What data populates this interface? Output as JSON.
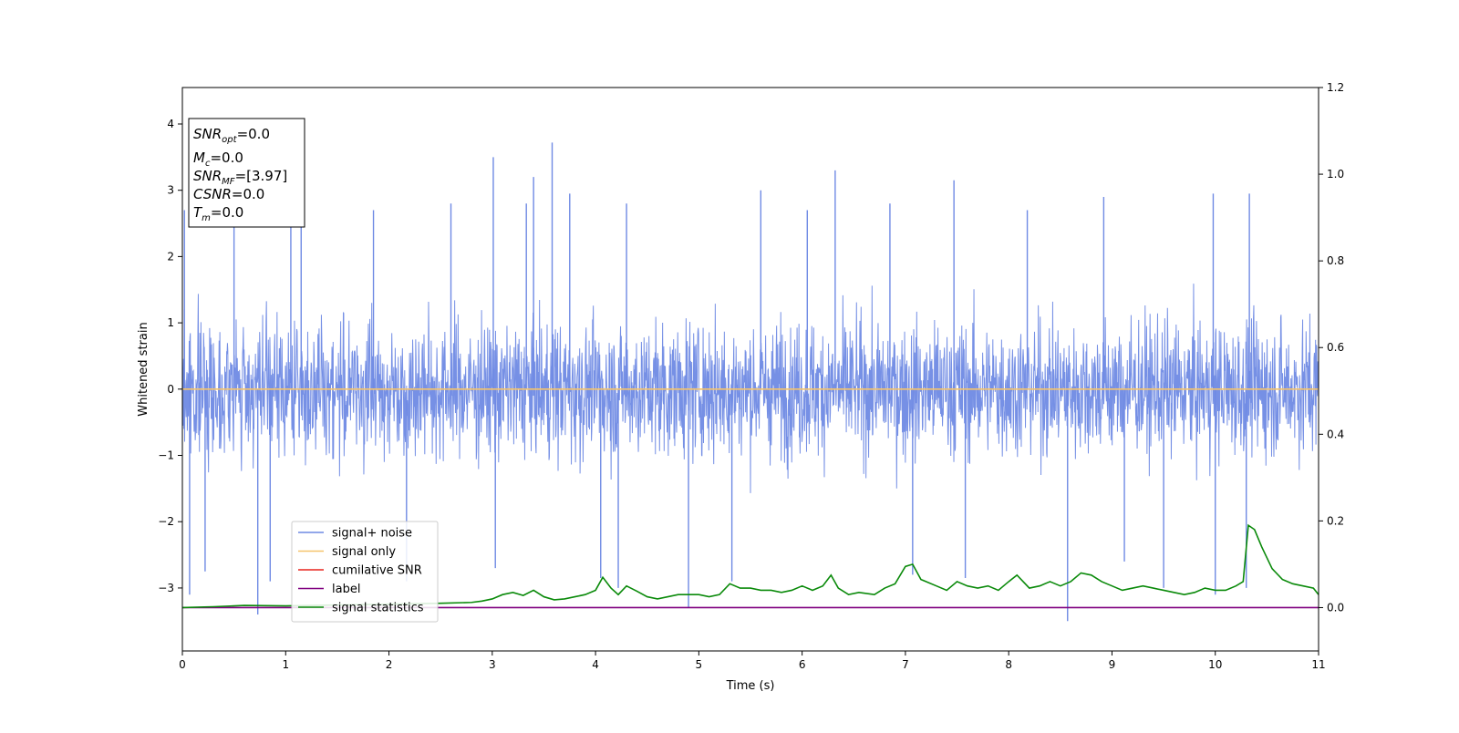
{
  "chart_data": {
    "type": "line",
    "xlabel": "Time (s)",
    "ylabel": "Whitened strain",
    "xlim": [
      0,
      11
    ],
    "ylim_left": [
      -3.95,
      4.55
    ],
    "ylim_right": [
      -0.1,
      1.2
    ],
    "x_ticks": [
      0,
      1,
      2,
      3,
      4,
      5,
      6,
      7,
      8,
      9,
      10,
      11
    ],
    "y_left_ticks": [
      -3,
      -2,
      -1,
      0,
      1,
      2,
      3,
      4
    ],
    "y_right_ticks": [
      0.0,
      0.2,
      0.4,
      0.6,
      0.8,
      1.0,
      1.2
    ],
    "grid": false,
    "legend_position": "lower-left",
    "info_box": {
      "snr_opt": {
        "base": "SNR",
        "sub": "opt",
        "value": "=0.0"
      },
      "mc": {
        "base": "M",
        "sub": "c",
        "value": "=0.0"
      },
      "snr_mf": {
        "base": "SNR",
        "sub": "MF",
        "value": "=[3.97]"
      },
      "csnr": {
        "base": "CSNR",
        "value": "=0.0"
      },
      "tm": {
        "base": "T",
        "sub": "m",
        "value": "=0.0"
      }
    },
    "series": [
      {
        "name": "signal+ noise",
        "axis": "left",
        "color": "#6f8ae4",
        "description": "dense whitened noise, roughly within -1.8 to 2.2 with spikes",
        "spikes": [
          [
            0.02,
            2.7
          ],
          [
            0.07,
            -3.1
          ],
          [
            0.22,
            -2.75
          ],
          [
            0.5,
            2.8
          ],
          [
            0.73,
            -3.4
          ],
          [
            0.85,
            -2.9
          ],
          [
            1.05,
            2.9
          ],
          [
            1.15,
            2.75
          ],
          [
            1.85,
            2.7
          ],
          [
            2.17,
            -2.9
          ],
          [
            2.6,
            2.8
          ],
          [
            3.01,
            3.5
          ],
          [
            3.03,
            -2.7
          ],
          [
            3.33,
            2.8
          ],
          [
            3.4,
            3.2
          ],
          [
            3.58,
            3.72
          ],
          [
            3.75,
            2.95
          ],
          [
            4.05,
            -2.85
          ],
          [
            4.22,
            -3.0
          ],
          [
            4.3,
            2.8
          ],
          [
            4.9,
            -3.3
          ],
          [
            5.32,
            -2.9
          ],
          [
            5.6,
            3.0
          ],
          [
            6.05,
            2.7
          ],
          [
            6.32,
            3.3
          ],
          [
            6.85,
            2.8
          ],
          [
            7.07,
            -2.8
          ],
          [
            7.47,
            3.15
          ],
          [
            7.58,
            -2.85
          ],
          [
            8.18,
            2.7
          ],
          [
            8.57,
            -3.5
          ],
          [
            8.92,
            2.9
          ],
          [
            9.12,
            -2.6
          ],
          [
            9.5,
            -3.0
          ],
          [
            9.98,
            2.95
          ],
          [
            10.0,
            -3.1
          ],
          [
            10.3,
            -3.0
          ],
          [
            10.33,
            2.95
          ]
        ]
      },
      {
        "name": "signal only",
        "axis": "left",
        "color": "#f5c46b",
        "x": [
          0,
          11
        ],
        "y": [
          0,
          0
        ]
      },
      {
        "name": "cumilative SNR",
        "axis": "left",
        "color": "#e8231d",
        "x": [],
        "y": []
      },
      {
        "name": "label",
        "axis": "right",
        "color": "#800080",
        "x": [
          0,
          11
        ],
        "y": [
          0,
          0
        ]
      },
      {
        "name": "signal statistics",
        "axis": "right",
        "color": "#0a8a0a",
        "x": [
          0,
          0.3,
          0.6,
          1.0,
          1.5,
          2.0,
          2.5,
          2.8,
          2.9,
          3.0,
          3.1,
          3.2,
          3.3,
          3.4,
          3.5,
          3.6,
          3.7,
          3.8,
          3.9,
          4.0,
          4.07,
          4.15,
          4.22,
          4.3,
          4.4,
          4.5,
          4.6,
          4.7,
          4.8,
          4.9,
          5.0,
          5.1,
          5.2,
          5.3,
          5.4,
          5.5,
          5.6,
          5.7,
          5.8,
          5.9,
          6.0,
          6.1,
          6.2,
          6.28,
          6.35,
          6.45,
          6.55,
          6.7,
          6.8,
          6.9,
          7.0,
          7.07,
          7.15,
          7.3,
          7.4,
          7.5,
          7.6,
          7.7,
          7.8,
          7.9,
          8.0,
          8.08,
          8.2,
          8.3,
          8.4,
          8.5,
          8.6,
          8.7,
          8.8,
          8.9,
          9.0,
          9.1,
          9.2,
          9.3,
          9.4,
          9.5,
          9.6,
          9.7,
          9.8,
          9.9,
          10.0,
          10.1,
          10.2,
          10.27,
          10.32,
          10.38,
          10.45,
          10.55,
          10.65,
          10.75,
          10.85,
          10.95,
          11.0
        ],
        "y": [
          0.0,
          0.002,
          0.005,
          0.004,
          0.006,
          0.008,
          0.01,
          0.012,
          0.015,
          0.02,
          0.03,
          0.035,
          0.028,
          0.04,
          0.025,
          0.018,
          0.02,
          0.025,
          0.03,
          0.04,
          0.07,
          0.045,
          0.03,
          0.05,
          0.038,
          0.025,
          0.02,
          0.025,
          0.03,
          0.03,
          0.03,
          0.025,
          0.03,
          0.055,
          0.045,
          0.045,
          0.04,
          0.04,
          0.035,
          0.04,
          0.05,
          0.04,
          0.05,
          0.075,
          0.045,
          0.03,
          0.035,
          0.03,
          0.045,
          0.055,
          0.095,
          0.1,
          0.065,
          0.05,
          0.04,
          0.06,
          0.05,
          0.045,
          0.05,
          0.04,
          0.06,
          0.075,
          0.045,
          0.05,
          0.06,
          0.05,
          0.06,
          0.08,
          0.075,
          0.06,
          0.05,
          0.04,
          0.045,
          0.05,
          0.045,
          0.04,
          0.035,
          0.03,
          0.035,
          0.045,
          0.04,
          0.04,
          0.05,
          0.06,
          0.19,
          0.18,
          0.14,
          0.09,
          0.065,
          0.055,
          0.05,
          0.045,
          0.03
        ]
      }
    ]
  }
}
